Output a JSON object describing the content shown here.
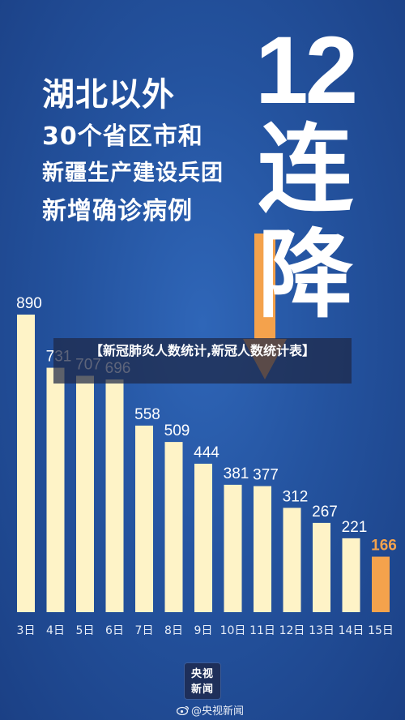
{
  "headline": {
    "lines": [
      "湖北以外",
      "30个省区市和",
      "新疆生产建设兵团",
      "新增确诊病例"
    ],
    "number": "12",
    "chars": [
      "连",
      "降"
    ]
  },
  "overlay_caption": "【新冠肺炎人数统计,新冠人数统计表】",
  "badge": {
    "line1": "央视",
    "line2": "新闻"
  },
  "watermark": "@央视新闻",
  "colors": {
    "background": "#24539f",
    "bar": "#fef3c7",
    "highlight_bar": "#f4a24c",
    "arrow": "#f4a24c",
    "value_label": "#ffffff",
    "highlight_label": "#f4a24c"
  },
  "chart_data": {
    "type": "bar",
    "title": "",
    "xlabel": "",
    "ylabel": "",
    "categories": [
      "3日",
      "4日",
      "5日",
      "6日",
      "7日",
      "8日",
      "9日",
      "10日",
      "11日",
      "12日",
      "13日",
      "14日",
      "15日"
    ],
    "values": [
      890,
      731,
      707,
      696,
      558,
      509,
      444,
      381,
      377,
      312,
      267,
      221,
      166
    ],
    "highlight_index": 12,
    "ylim": [
      0,
      890
    ],
    "grid": false,
    "legend": "none"
  }
}
